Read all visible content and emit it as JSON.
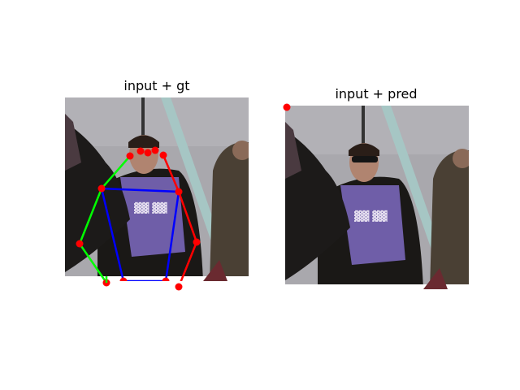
{
  "panels": {
    "left": {
      "title": "input + gt"
    },
    "right": {
      "title": "input + pred"
    }
  },
  "colors": {
    "left_limbs": "#00ff00",
    "right_limbs": "#ff0000",
    "torso": "#0000ff",
    "keypoint": "#ff0000",
    "sky": "#a9a8ad",
    "jacket": "#1a1816",
    "hoodie": "#6f5ea8",
    "pole": "#a6c6c4"
  }
}
